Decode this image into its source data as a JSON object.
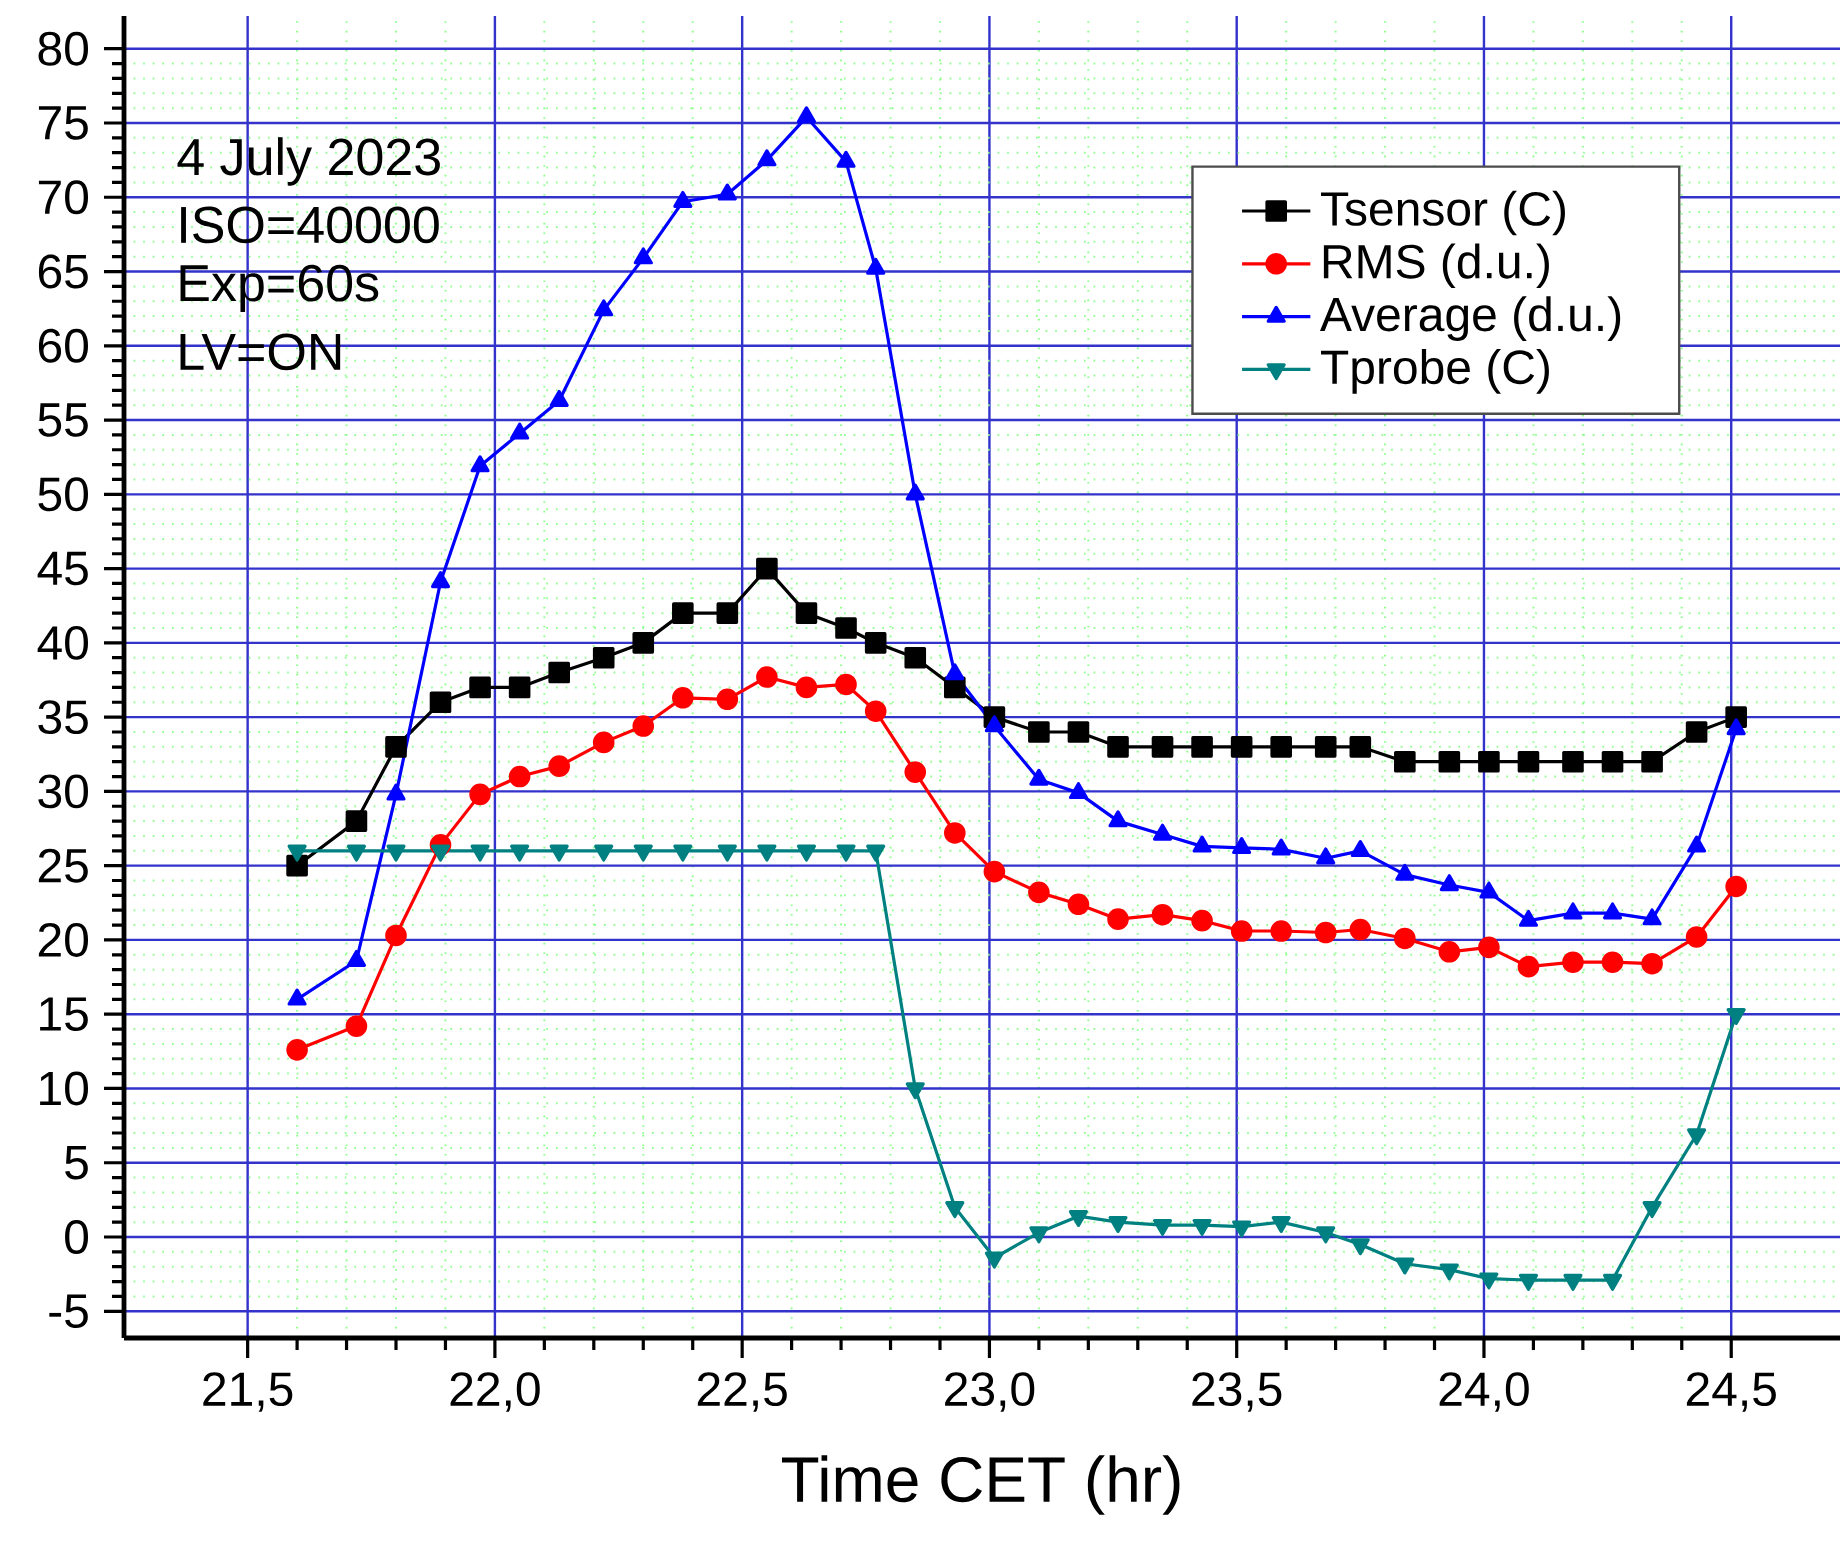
{
  "chart_data": {
    "type": "line",
    "xlabel": "Time CET (hr)",
    "annotations": [
      "4 July 2023",
      "ISO=40000",
      "Exp=60s",
      "LV=ON"
    ],
    "x": [
      21.6,
      21.72,
      21.8,
      21.89,
      21.97,
      22.05,
      22.13,
      22.22,
      22.3,
      22.38,
      22.47,
      22.55,
      22.63,
      22.71,
      22.77,
      22.85,
      22.93,
      23.01,
      23.1,
      23.18,
      23.26,
      23.35,
      23.43,
      23.51,
      23.59,
      23.68,
      23.75,
      23.84,
      23.93,
      24.01,
      24.09,
      24.18,
      24.26,
      24.34,
      24.43,
      24.51
    ],
    "series": [
      {
        "name": "Tsensor (C)",
        "color": "#000000",
        "marker": "square",
        "values": [
          25,
          28,
          33,
          36,
          37,
          37,
          38,
          39,
          40,
          42,
          42,
          45,
          42,
          41,
          40,
          39,
          37,
          35,
          34,
          34,
          33,
          33,
          33,
          33,
          33,
          33,
          33,
          32,
          32,
          32,
          32,
          32,
          32,
          32,
          34,
          35
        ]
      },
      {
        "name": "RMS (d.u.)",
        "color": "#ff0000",
        "marker": "circle",
        "values": [
          12.6,
          14.2,
          20.3,
          26.4,
          29.8,
          31.0,
          31.7,
          33.3,
          34.4,
          36.3,
          36.2,
          37.7,
          37.0,
          37.2,
          35.4,
          31.3,
          27.2,
          24.6,
          23.2,
          22.4,
          21.4,
          21.7,
          21.3,
          20.6,
          20.6,
          20.5,
          20.7,
          20.1,
          19.2,
          19.5,
          18.2,
          18.5,
          18.5,
          18.4,
          20.2,
          23.6
        ]
      },
      {
        "name": "Average (d.u.)",
        "color": "#0000ff",
        "marker": "triangle",
        "values": [
          16.0,
          18.6,
          29.8,
          44.1,
          51.9,
          54.1,
          56.3,
          62.4,
          65.9,
          69.7,
          70.2,
          72.5,
          75.4,
          72.4,
          65.2,
          50.0,
          37.9,
          34.4,
          30.8,
          29.9,
          28.0,
          27.1,
          26.3,
          26.2,
          26.1,
          25.5,
          26.0,
          24.4,
          23.7,
          23.2,
          21.3,
          21.8,
          21.8,
          21.4,
          26.3,
          34.2
        ]
      },
      {
        "name": "Tprobe (C)",
        "color": "#008080",
        "marker": "triangle-down",
        "values": [
          26,
          26,
          26,
          26,
          26,
          26,
          26,
          26,
          26,
          26,
          26,
          26,
          26,
          26,
          26,
          10,
          2.0,
          -1.4,
          0.3,
          1.4,
          1.0,
          0.8,
          0.8,
          0.7,
          1.0,
          0.3,
          -0.5,
          -1.8,
          -2.2,
          -2.8,
          -2.9,
          -2.9,
          -2.9,
          2.0,
          6.9,
          15.0
        ]
      }
    ],
    "xlim": [
      21.25,
      24.72
    ],
    "ylim": [
      -6.8,
      82.2
    ],
    "xticks": [
      {
        "value": 21.5,
        "label": "21,5"
      },
      {
        "value": 22.0,
        "label": "22,0"
      },
      {
        "value": 22.5,
        "label": "22,5"
      },
      {
        "value": 23.0,
        "label": "23,0"
      },
      {
        "value": 23.5,
        "label": "23,5"
      },
      {
        "value": 24.0,
        "label": "24,0"
      },
      {
        "value": 24.5,
        "label": "24,5"
      }
    ],
    "yticks": [
      -5,
      0,
      5,
      10,
      15,
      20,
      25,
      30,
      35,
      40,
      45,
      50,
      55,
      60,
      65,
      70,
      75,
      80
    ],
    "grid": true,
    "legend": "top right",
    "line_style": "solid"
  }
}
